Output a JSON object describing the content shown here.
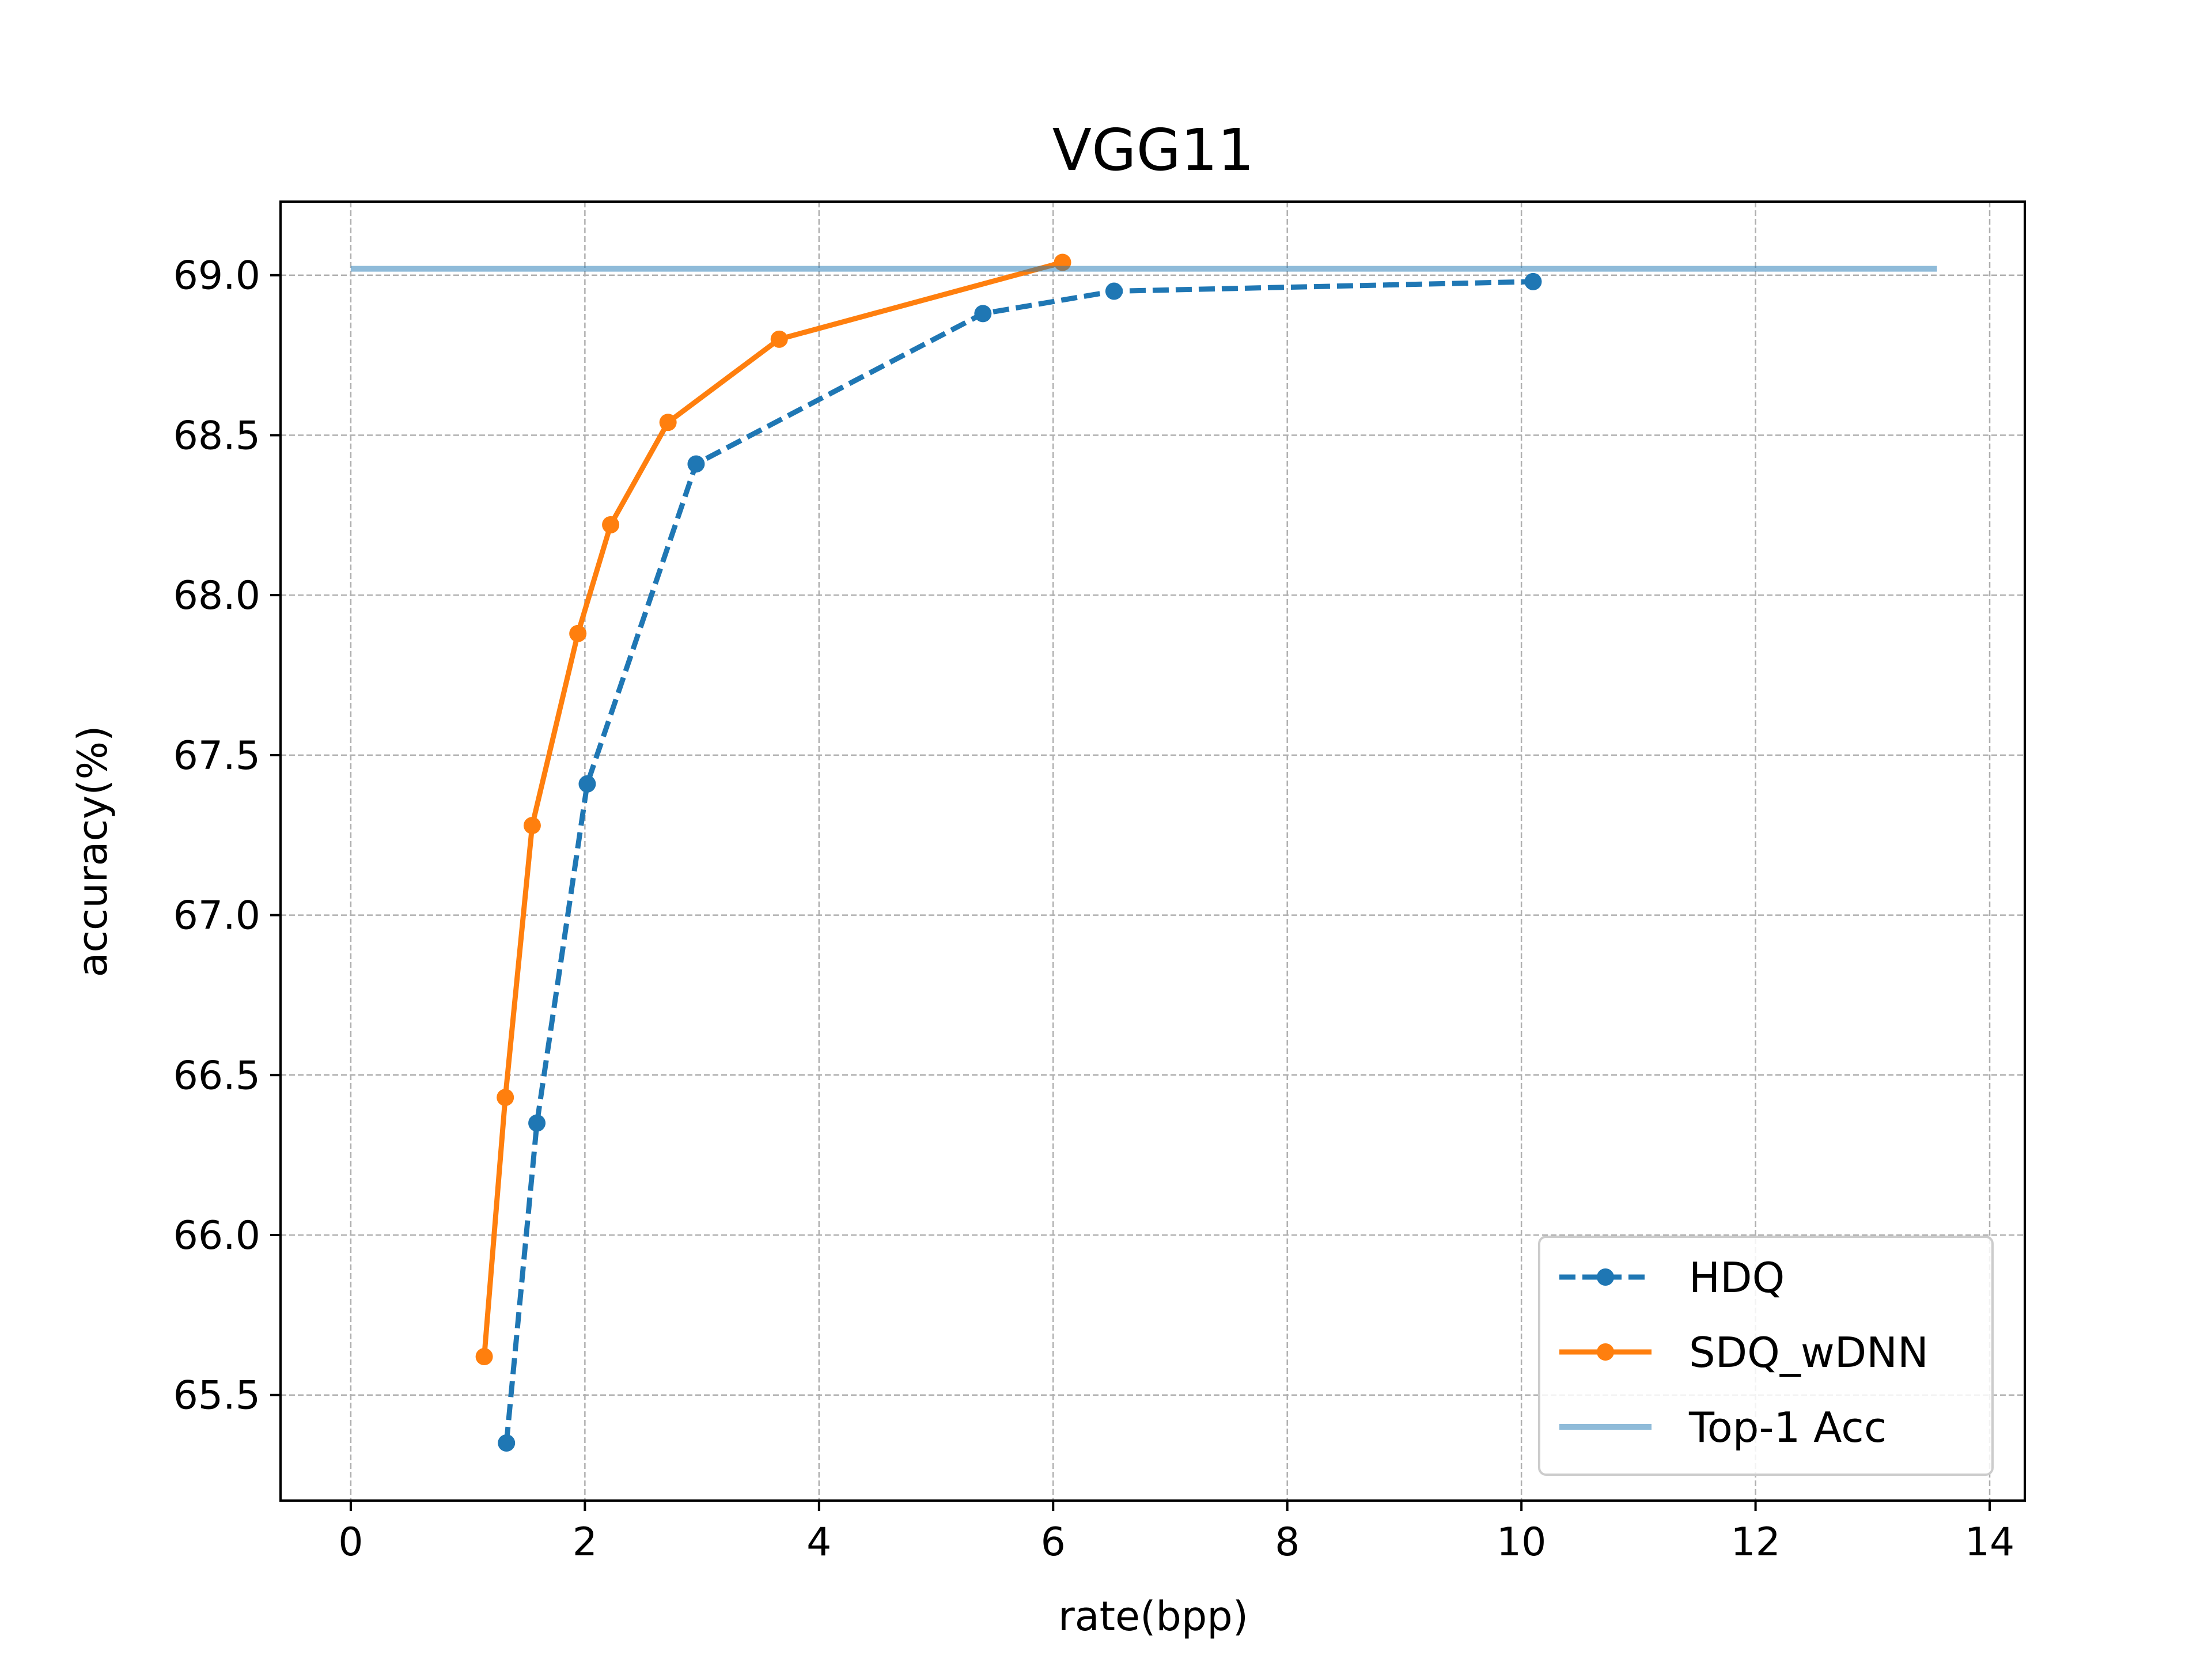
{
  "chart_data": {
    "type": "line",
    "title": "VGG11",
    "xlabel": "rate(bpp)",
    "ylabel": "accuracy(%)",
    "xlim": [
      -0.6,
      14.3
    ],
    "ylim": [
      65.17,
      69.23
    ],
    "x_ticks": [
      0,
      2,
      4,
      6,
      8,
      10,
      12,
      14
    ],
    "y_ticks": [
      65.5,
      66.0,
      66.5,
      67.0,
      67.5,
      68.0,
      68.5,
      69.0
    ],
    "x_tick_labels": [
      "0",
      "2",
      "4",
      "6",
      "8",
      "10",
      "12",
      "14"
    ],
    "y_tick_labels": [
      "65.5",
      "66.0",
      "66.5",
      "67.0",
      "67.5",
      "68.0",
      "68.5",
      "69.0"
    ],
    "grid": true,
    "legend_position": "lower-right",
    "series": [
      {
        "name": "HDQ",
        "color": "#1f77b4",
        "line_style": "dashed",
        "marker": "circle",
        "x": [
          1.33,
          1.59,
          2.02,
          2.95,
          5.4,
          6.52,
          10.1
        ],
        "y": [
          65.35,
          66.35,
          67.41,
          68.41,
          68.88,
          68.95,
          68.98
        ]
      },
      {
        "name": "SDQ_wDNN",
        "color": "#ff7f0e",
        "line_style": "solid",
        "marker": "circle",
        "x": [
          1.14,
          1.32,
          1.55,
          1.94,
          2.22,
          2.71,
          3.66,
          6.08
        ],
        "y": [
          65.62,
          66.43,
          67.28,
          67.88,
          68.22,
          68.54,
          68.8,
          69.04
        ]
      },
      {
        "name": "Top-1 Acc",
        "color": "#1f77b4",
        "opacity": 0.5,
        "line_style": "solid",
        "marker": "none",
        "x": [
          0,
          13.55
        ],
        "y": [
          69.02,
          69.02
        ]
      }
    ]
  }
}
